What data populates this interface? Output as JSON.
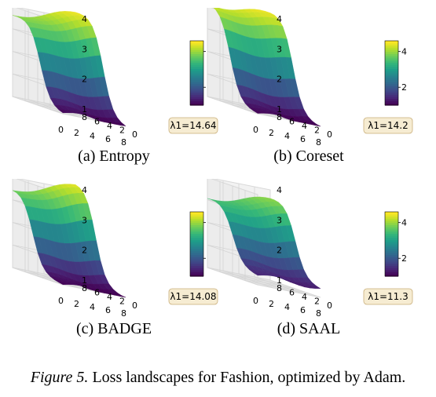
{
  "figure": {
    "label": "Figure 5.",
    "text": " Loss landscapes for Fashion, optimized by Adam."
  },
  "colorbar": {
    "ticks": [
      "2",
      "4"
    ]
  },
  "axes": {
    "x_ticks": [
      "0",
      "2",
      "4",
      "6",
      "8"
    ],
    "y_ticks": [
      "0",
      "2",
      "4",
      "6",
      "8"
    ],
    "z_ticks": [
      "1",
      "2",
      "3",
      "4"
    ]
  },
  "chart_data": [
    {
      "type": "surface",
      "caption": "(a) Entropy",
      "lambda_label": "λ1=14.64",
      "lambda": 14.64,
      "x_range": [
        0,
        8
      ],
      "y_range": [
        0,
        8
      ],
      "zlim": [
        1,
        4
      ],
      "colormap": "viridis",
      "surface": {
        "low": 1.0,
        "high_left": 3.7,
        "high_right": 4.2,
        "transition": 0.45
      }
    },
    {
      "type": "surface",
      "caption": "(b) Coreset",
      "lambda_label": "λ1=14.2",
      "lambda": 14.2,
      "x_range": [
        0,
        8
      ],
      "y_range": [
        0,
        8
      ],
      "zlim": [
        1,
        4
      ],
      "colormap": "viridis",
      "surface": {
        "low": 1.0,
        "high_left": 4.1,
        "high_right": 4.2,
        "transition": 0.55
      }
    },
    {
      "type": "surface",
      "caption": "(c) BADGE",
      "lambda_label": "λ1=14.08",
      "lambda": 14.08,
      "x_range": [
        0,
        8
      ],
      "y_range": [
        0,
        8
      ],
      "zlim": [
        1,
        4
      ],
      "colormap": "viridis",
      "surface": {
        "low": 1.0,
        "high_left": 3.6,
        "high_right": 4.2,
        "transition": 0.6
      }
    },
    {
      "type": "surface",
      "caption": "(d) SAAL",
      "lambda_label": "λ1=11.3",
      "lambda": 11.3,
      "x_range": [
        0,
        8
      ],
      "y_range": [
        0,
        8
      ],
      "zlim": [
        1,
        4
      ],
      "colormap": "viridis",
      "surface": {
        "low": 1.3,
        "high_left": 3.3,
        "high_right": 3.7,
        "transition": 0.5
      }
    }
  ]
}
